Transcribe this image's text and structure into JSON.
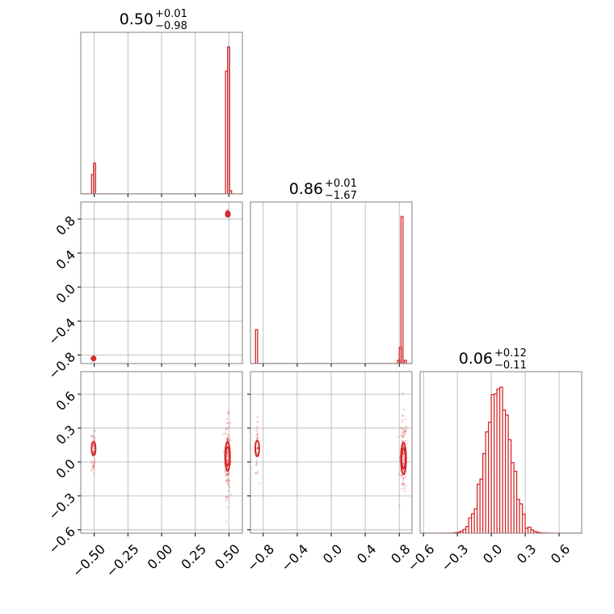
{
  "colors": {
    "series": "#d62728",
    "grid": "#b0b0b0",
    "frame": "#808080"
  },
  "chart_data": {
    "type": "corner",
    "panels": [
      {
        "kind": "histogram",
        "row": 0,
        "col": 0,
        "title": {
          "value": "0.50",
          "plus": "+0.01",
          "minus": "−0.98"
        },
        "xlim": [
          -0.6,
          0.6
        ],
        "xticks": [
          -0.5,
          -0.25,
          0.0,
          0.25,
          0.5
        ],
        "ymax": 1.0,
        "bins": [
          [
            -0.52,
            0.12
          ],
          [
            -0.505,
            0.19
          ],
          [
            0.475,
            0.76
          ],
          [
            0.49,
            0.91
          ],
          [
            0.505,
            0.02
          ]
        ]
      },
      {
        "kind": "scatter2d",
        "row": 1,
        "col": 0,
        "xlim": [
          -0.6,
          0.6
        ],
        "ylim": [
          -0.9,
          1.0
        ],
        "xticks": [
          -0.5,
          -0.25,
          0.0,
          0.25,
          0.5
        ],
        "yticks": [
          -0.8,
          -0.4,
          0.0,
          0.4,
          0.8
        ],
        "ytick_labels": [
          "−0.8",
          "−0.4",
          "0.0",
          "0.4",
          "0.8"
        ],
        "blobs": [
          {
            "x": -0.505,
            "y": -0.84,
            "sx": 0.008,
            "sy": 0.012,
            "n": 40
          },
          {
            "x": 0.492,
            "y": 0.86,
            "sx": 0.006,
            "sy": 0.02,
            "n": 60
          }
        ],
        "contours": [
          {
            "x": -0.505,
            "y": -0.84,
            "rx": 0.014,
            "ry": 0.015
          },
          {
            "x": 0.492,
            "y": 0.86,
            "rx": 0.012,
            "ry": 0.03
          },
          {
            "x": 0.492,
            "y": 0.85,
            "rx": 0.007,
            "ry": 0.02
          }
        ]
      },
      {
        "kind": "histogram",
        "row": 1,
        "col": 1,
        "title": {
          "value": "0.86",
          "plus": "+0.01",
          "minus": "−1.67"
        },
        "xlim": [
          -0.95,
          0.95
        ],
        "xticks": [
          -0.8,
          -0.4,
          0.0,
          0.4,
          0.8
        ],
        "ymax": 1.0,
        "bins": [
          [
            -0.89,
            0.21
          ],
          [
            0.78,
            0.02
          ],
          [
            0.8,
            0.1
          ],
          [
            0.82,
            0.91
          ],
          [
            0.86,
            0.02
          ]
        ]
      },
      {
        "kind": "scatter2d",
        "row": 2,
        "col": 0,
        "xlim": [
          -0.6,
          0.6
        ],
        "ylim": [
          -0.63,
          0.8
        ],
        "xticks": [
          -0.5,
          -0.25,
          0.0,
          0.25,
          0.5
        ],
        "yticks": [
          -0.6,
          -0.3,
          0.0,
          0.3,
          0.6
        ],
        "ytick_labels": [
          "−0.6",
          "−0.3",
          "0.0",
          "0.3",
          "0.6"
        ],
        "blobs": [
          {
            "x": -0.505,
            "y": 0.1,
            "sx": 0.008,
            "sy": 0.12,
            "n": 60
          },
          {
            "x": 0.49,
            "y": 0.05,
            "sx": 0.01,
            "sy": 0.17,
            "n": 140
          }
        ],
        "contours": [
          {
            "x": -0.505,
            "y": 0.12,
            "rx": 0.012,
            "ry": 0.06
          },
          {
            "x": 0.49,
            "y": 0.05,
            "rx": 0.018,
            "ry": 0.13
          },
          {
            "x": 0.49,
            "y": 0.05,
            "rx": 0.01,
            "ry": 0.08
          }
        ]
      },
      {
        "kind": "scatter2d",
        "row": 2,
        "col": 1,
        "xlim": [
          -0.95,
          0.95
        ],
        "ylim": [
          -0.63,
          0.8
        ],
        "xticks": [
          -0.8,
          -0.4,
          0.0,
          0.4,
          0.8
        ],
        "yticks": [
          -0.6,
          -0.3,
          0.0,
          0.3,
          0.6
        ],
        "blobs": [
          {
            "x": -0.87,
            "y": 0.12,
            "sx": 0.01,
            "sy": 0.12,
            "n": 50
          },
          {
            "x": 0.85,
            "y": 0.05,
            "sx": 0.02,
            "sy": 0.17,
            "n": 140
          }
        ],
        "contours": [
          {
            "x": -0.87,
            "y": 0.12,
            "rx": 0.015,
            "ry": 0.07
          },
          {
            "x": 0.85,
            "y": 0.03,
            "rx": 0.03,
            "ry": 0.14
          },
          {
            "x": 0.85,
            "y": 0.03,
            "rx": 0.016,
            "ry": 0.09
          }
        ]
      },
      {
        "kind": "histogram",
        "row": 2,
        "col": 2,
        "title": {
          "value": "0.06",
          "plus": "+0.12",
          "minus": "−0.11"
        },
        "xlim": [
          -0.63,
          0.8
        ],
        "xticks": [
          -0.6,
          -0.3,
          0.0,
          0.3,
          0.6
        ],
        "ymax": 1.0,
        "gaussian": {
          "mu": 0.06,
          "sigma": 0.11,
          "peak": 0.9,
          "bin_width": 0.025,
          "lo": -0.45,
          "hi": 0.65
        }
      }
    ],
    "x_tick_labels": {
      "col0": [
        "−0.50",
        "−0.25",
        "0.00",
        "0.25",
        "0.50"
      ],
      "col1": [
        "−0.8",
        "−0.4",
        "0.0",
        "0.4",
        "0.8"
      ],
      "col2": [
        "−0.6",
        "−0.3",
        "0.0",
        "0.3",
        "0.6"
      ]
    }
  }
}
